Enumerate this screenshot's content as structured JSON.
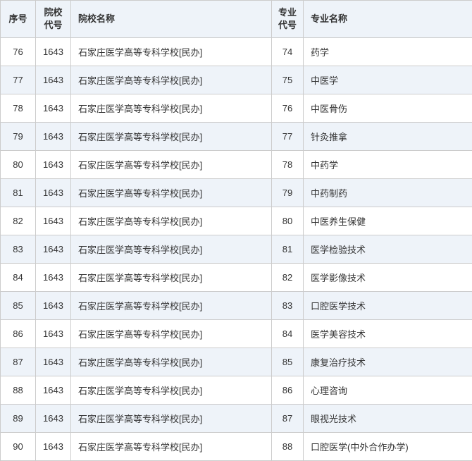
{
  "table": {
    "columns": [
      {
        "label": "序号",
        "class": "col-seq"
      },
      {
        "label": "院校\n代号",
        "class": "col-scode"
      },
      {
        "label": "院校名称",
        "class": "col-sname"
      },
      {
        "label": "专业\n代号",
        "class": "col-mcode"
      },
      {
        "label": "专业名称",
        "class": "col-mname"
      }
    ],
    "rows": [
      {
        "seq": "76",
        "scode": "1643",
        "sname": "石家庄医学高等专科学校[民办]",
        "mcode": "74",
        "mname": "药学"
      },
      {
        "seq": "77",
        "scode": "1643",
        "sname": "石家庄医学高等专科学校[民办]",
        "mcode": "75",
        "mname": "中医学"
      },
      {
        "seq": "78",
        "scode": "1643",
        "sname": "石家庄医学高等专科学校[民办]",
        "mcode": "76",
        "mname": "中医骨伤"
      },
      {
        "seq": "79",
        "scode": "1643",
        "sname": "石家庄医学高等专科学校[民办]",
        "mcode": "77",
        "mname": "针灸推拿"
      },
      {
        "seq": "80",
        "scode": "1643",
        "sname": "石家庄医学高等专科学校[民办]",
        "mcode": "78",
        "mname": "中药学"
      },
      {
        "seq": "81",
        "scode": "1643",
        "sname": "石家庄医学高等专科学校[民办]",
        "mcode": "79",
        "mname": "中药制药"
      },
      {
        "seq": "82",
        "scode": "1643",
        "sname": "石家庄医学高等专科学校[民办]",
        "mcode": "80",
        "mname": "中医养生保健"
      },
      {
        "seq": "83",
        "scode": "1643",
        "sname": "石家庄医学高等专科学校[民办]",
        "mcode": "81",
        "mname": "医学检验技术"
      },
      {
        "seq": "84",
        "scode": "1643",
        "sname": "石家庄医学高等专科学校[民办]",
        "mcode": "82",
        "mname": "医学影像技术"
      },
      {
        "seq": "85",
        "scode": "1643",
        "sname": "石家庄医学高等专科学校[民办]",
        "mcode": "83",
        "mname": "口腔医学技术"
      },
      {
        "seq": "86",
        "scode": "1643",
        "sname": "石家庄医学高等专科学校[民办]",
        "mcode": "84",
        "mname": "医学美容技术"
      },
      {
        "seq": "87",
        "scode": "1643",
        "sname": "石家庄医学高等专科学校[民办]",
        "mcode": "85",
        "mname": "康复治疗技术"
      },
      {
        "seq": "88",
        "scode": "1643",
        "sname": "石家庄医学高等专科学校[民办]",
        "mcode": "86",
        "mname": "心理咨询"
      },
      {
        "seq": "89",
        "scode": "1643",
        "sname": "石家庄医学高等专科学校[民办]",
        "mcode": "87",
        "mname": "眼视光技术"
      },
      {
        "seq": "90",
        "scode": "1643",
        "sname": "石家庄医学高等专科学校[民办]",
        "mcode": "88",
        "mname": "口腔医学(中外合作办学)"
      }
    ],
    "header_bg": "#eef3f9",
    "row_bg": "#ffffff",
    "alt_row_bg": "#eef3f9",
    "border_color": "#cccccc",
    "text_color": "#333333",
    "font_size": 13
  }
}
